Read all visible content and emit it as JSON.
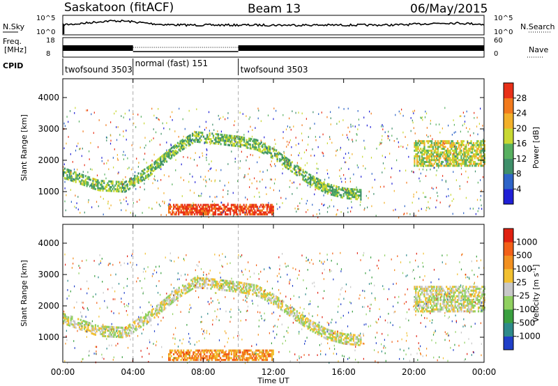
{
  "header": {
    "station": "Saskatoon (fitACF)",
    "beam": "Beam 13",
    "date": "06/May/2015"
  },
  "status_panels": {
    "left_labels": {
      "nsky": "N.Sky",
      "freq": "Freq.",
      "freq_unit": "[MHz]",
      "cpid": "CPID"
    },
    "right_labels": {
      "nsearch": "N.Search",
      "nave": "Nave"
    },
    "nsky_axis": [
      "10^5",
      "10^0"
    ],
    "nsearch_axis": [
      "10^5",
      "10^0"
    ],
    "freq_axis": [
      "18",
      "8"
    ],
    "nave_axis": [
      "60",
      "0"
    ],
    "cpid_segments": [
      {
        "label": "twofsound 3503",
        "start_hour": 0,
        "end_hour": 4
      },
      {
        "label": "normal (fast) 151",
        "start_hour": 4,
        "end_hour": 10
      },
      {
        "label": "twofsound 3503",
        "start_hour": 10,
        "end_hour": 24
      }
    ]
  },
  "chart_data": [
    {
      "type": "heatmap",
      "name": "power",
      "ylabel": "Slant Range [km]",
      "ylim": [
        200,
        4600
      ],
      "xlim_hours": [
        0,
        24
      ],
      "yticks": [
        1000,
        2000,
        3000,
        4000
      ],
      "colorbar": {
        "label": "Power [dB]",
        "ticks": [
          "4",
          "8",
          "12",
          "16",
          "20",
          "24",
          "28"
        ],
        "colors": [
          "#1f1fd6",
          "#2e64c8",
          "#3f8f6a",
          "#58b060",
          "#c8d832",
          "#f2b02a",
          "#f27a1c",
          "#e83018"
        ]
      },
      "features": [
        {
          "kind": "arc",
          "hours": [
            0,
            2,
            3.5,
            5,
            6.5,
            7.5,
            8.5,
            10,
            11,
            12,
            13,
            14,
            15,
            16,
            17
          ],
          "km": [
            1600,
            1200,
            1150,
            1700,
            2400,
            2750,
            2700,
            2600,
            2500,
            2200,
            1800,
            1400,
            1100,
            950,
            900
          ],
          "level": 3
        },
        {
          "kind": "band",
          "hours": [
            20,
            24
          ],
          "km": [
            1800,
            2600
          ],
          "level": 4
        },
        {
          "kind": "band",
          "hours": [
            6,
            12
          ],
          "km": [
            250,
            600
          ],
          "level": 7
        }
      ]
    },
    {
      "type": "heatmap",
      "name": "velocity",
      "ylabel": "Slant Range [km]",
      "xlabel": "Time UT",
      "ylim": [
        200,
        4600
      ],
      "xlim_hours": [
        0,
        24
      ],
      "yticks": [
        1000,
        2000,
        3000,
        4000
      ],
      "xticks": [
        "00:00",
        "04:00",
        "08:00",
        "12:00",
        "16:00",
        "20:00",
        "00:00"
      ],
      "colorbar": {
        "label": "Velocity [m s^-1]",
        "ticks": [
          "1000",
          "500",
          "100",
          "25",
          "-25",
          "-100",
          "-500",
          "-1000"
        ],
        "colors": [
          "#1f3fc8",
          "#2e8a8a",
          "#3aa040",
          "#90d060",
          "#c8c8c8",
          "#f2c030",
          "#f29020",
          "#f26018",
          "#e02010"
        ]
      },
      "features": [
        {
          "kind": "arc",
          "hours": [
            0,
            2,
            3.5,
            5,
            6.5,
            7.5,
            8.5,
            10,
            11,
            12,
            13,
            14,
            15,
            16,
            17
          ],
          "km": [
            1600,
            1200,
            1150,
            1700,
            2400,
            2750,
            2700,
            2600,
            2500,
            2200,
            1800,
            1400,
            1100,
            950,
            900
          ],
          "level": 4
        },
        {
          "kind": "band",
          "hours": [
            20,
            24
          ],
          "km": [
            1800,
            2600
          ],
          "level": 4
        },
        {
          "kind": "band",
          "hours": [
            6,
            12
          ],
          "km": [
            250,
            600
          ],
          "level": 6
        }
      ]
    }
  ]
}
